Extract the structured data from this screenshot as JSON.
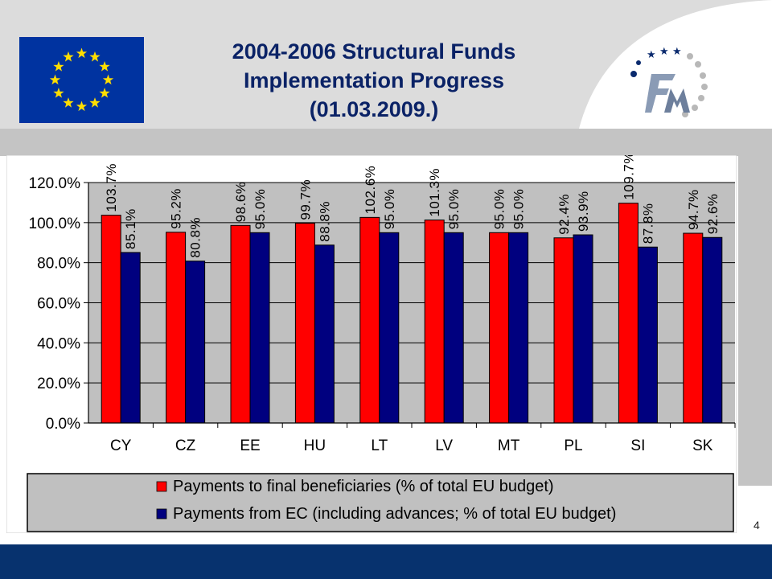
{
  "slide": {
    "title_lines": [
      "2004-2006 Structural Funds",
      "Implementation Progress",
      "(01.03.2009.)"
    ],
    "page_number": "4",
    "logos": [
      "eu-flag",
      "fm-logo"
    ]
  },
  "chart_data": {
    "type": "bar",
    "categories": [
      "CY",
      "CZ",
      "EE",
      "HU",
      "LT",
      "LV",
      "MT",
      "PL",
      "SI",
      "SK"
    ],
    "series": [
      {
        "name": "Payments to final beneficiaries (% of total EU budget)",
        "color": "#ff0000",
        "values": [
          103.7,
          95.2,
          98.6,
          99.7,
          102.6,
          101.3,
          95.0,
          92.4,
          109.7,
          94.7
        ],
        "labels": [
          "103.7%",
          "95.2%",
          "98.6%",
          "99.7%",
          "102.6%",
          "101.3%",
          "95.0%",
          "92.4%",
          "109.7%",
          "94.7%"
        ]
      },
      {
        "name": "Payments from EC (including advances; % of total EU budget)",
        "color": "#00007f",
        "values": [
          85.1,
          80.8,
          95.0,
          88.8,
          95.0,
          95.0,
          95.0,
          93.9,
          87.8,
          92.6
        ],
        "labels": [
          "85.1%",
          "80.8%",
          "95.0%",
          "88.8%",
          "95.0%",
          "95.0%",
          "95.0%",
          "93.9%",
          "87.8%",
          "92.6%"
        ]
      }
    ],
    "ylim": [
      0,
      120
    ],
    "yticks": [
      "0.0%",
      "20.0%",
      "40.0%",
      "60.0%",
      "80.0%",
      "100.0%",
      "120.0%"
    ],
    "grid": true,
    "legend_position": "bottom",
    "plot_background": "#c0c0c0"
  }
}
